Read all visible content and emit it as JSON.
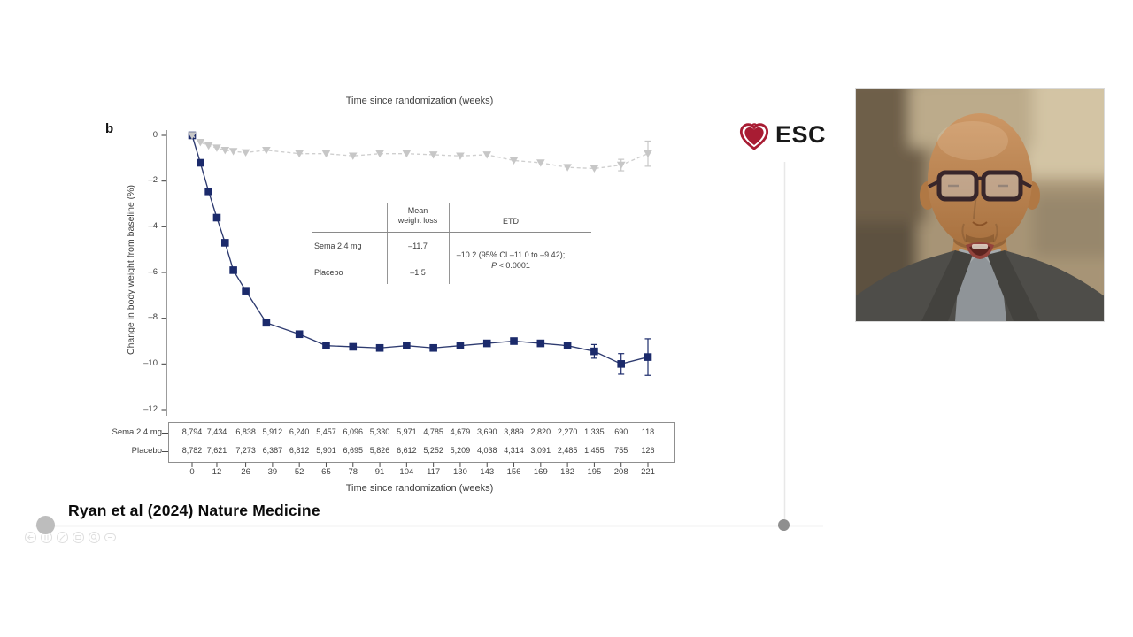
{
  "slide": {
    "panel_label": "b",
    "top_axis_title": "Time since randomization (weeks)",
    "y_axis_label": "Change in body weight from baseline (%)",
    "x_axis_label": "Time since randomization (weeks)",
    "citation": "Ryan et al (2024) Nature Medicine"
  },
  "logo": {
    "text": "ESC",
    "heart_color": "#a81c33",
    "text_color": "#191919",
    "icon": "heart-icon"
  },
  "inset_table": {
    "header_mean_line1": "Mean",
    "header_mean_line2": "weight loss",
    "header_etd": "ETD",
    "rows": [
      {
        "label": "Sema 2.4 mg",
        "mean": "–11.7"
      },
      {
        "label": "Placebo",
        "mean": "–1.5"
      }
    ],
    "etd_line1": "–10.2 (95% CI –11.0 to –9.42);",
    "etd_p": "P",
    "etd_p_rest": " < 0.0001"
  },
  "chart_data": {
    "type": "line",
    "title": "Time since randomization (weeks)",
    "xlabel": "Time since randomization (weeks)",
    "ylabel": "Change in body weight from baseline (%)",
    "ylim": [
      -12,
      0
    ],
    "y_ticks": [
      0,
      -2,
      -4,
      -6,
      -8,
      -10,
      -12
    ],
    "y_tick_labels": [
      "0",
      "–2",
      "–4",
      "–6",
      "–8",
      "–10",
      "–12"
    ],
    "x_ticks": [
      0,
      12,
      26,
      39,
      52,
      65,
      78,
      91,
      104,
      117,
      130,
      143,
      156,
      169,
      182,
      195,
      208,
      221
    ],
    "series": [
      {
        "name": "Sema 2.4 mg",
        "color": "#1b2a6b",
        "line_color": "#2e3b70",
        "marker": "square",
        "line_style": "solid",
        "x": [
          0,
          4,
          8,
          12,
          16,
          20,
          26,
          36,
          52,
          65,
          78,
          91,
          104,
          117,
          130,
          143,
          156,
          169,
          182,
          195,
          208,
          221
        ],
        "y": [
          0,
          -1.2,
          -2.45,
          -3.6,
          -4.7,
          -5.9,
          -6.8,
          -8.2,
          -8.7,
          -9.2,
          -9.25,
          -9.3,
          -9.2,
          -9.3,
          -9.2,
          -9.1,
          -9.0,
          -9.1,
          -9.2,
          -9.45,
          -10.0,
          -9.7
        ],
        "error_bars": {
          "195": 0.3,
          "208": 0.45,
          "221": 0.8
        }
      },
      {
        "name": "Placebo",
        "color": "#c7c7c7",
        "line_color": "#cfcfcf",
        "marker": "triangle-down",
        "line_style": "dashed",
        "x": [
          0,
          4,
          8,
          12,
          16,
          20,
          26,
          36,
          52,
          65,
          78,
          91,
          104,
          117,
          130,
          143,
          156,
          169,
          182,
          195,
          208,
          221
        ],
        "y": [
          0,
          -0.3,
          -0.45,
          -0.55,
          -0.65,
          -0.7,
          -0.75,
          -0.65,
          -0.8,
          -0.8,
          -0.9,
          -0.8,
          -0.8,
          -0.85,
          -0.9,
          -0.85,
          -1.1,
          -1.2,
          -1.4,
          -1.45,
          -1.3,
          -0.8
        ],
        "error_bars": {
          "208": 0.25,
          "221": 0.55
        }
      }
    ]
  },
  "risk_table": {
    "row_labels": [
      "Sema 2.4 mg",
      "Placebo"
    ],
    "rows": [
      [
        "8,794",
        "7,434",
        "6,838",
        "5,912",
        "6,240",
        "5,457",
        "6,096",
        "5,330",
        "5,971",
        "4,785",
        "4,679",
        "3,690",
        "3,889",
        "2,820",
        "2,270",
        "1,335",
        "690",
        "118"
      ],
      [
        "8,782",
        "7,621",
        "7,273",
        "6,387",
        "6,812",
        "5,901",
        "6,695",
        "5,826",
        "6,612",
        "5,252",
        "5,209",
        "4,038",
        "4,314",
        "3,091",
        "2,485",
        "1,455",
        "755",
        "126"
      ]
    ]
  },
  "toolbar": {
    "icons": [
      "undo-icon",
      "pointer-icon",
      "pen-icon",
      "eraser-icon",
      "magnifier-icon",
      "minimize-icon"
    ]
  }
}
